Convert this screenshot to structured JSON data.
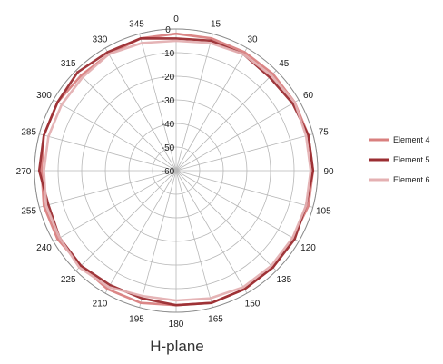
{
  "chart_data": {
    "type": "line",
    "subtype": "polar",
    "title": "",
    "caption": "H-plane",
    "angle_unit": "degrees",
    "angle_step": 15,
    "angle_labels": [
      "0",
      "15",
      "30",
      "45",
      "60",
      "75",
      "90",
      "105",
      "120",
      "135",
      "150",
      "165",
      "180",
      "195",
      "210",
      "225",
      "240",
      "255",
      "270",
      "285",
      "300",
      "315",
      "330",
      "345"
    ],
    "radial_axis": {
      "min": -60,
      "max": 0,
      "step": 10,
      "tick_labels": [
        "0",
        "-10",
        "-20",
        "-30",
        "-40",
        "-50",
        "-60"
      ]
    },
    "grid": true,
    "legend_position": "right",
    "theta": [
      0,
      15,
      30,
      45,
      60,
      75,
      90,
      105,
      120,
      135,
      150,
      165,
      180,
      195,
      210,
      225,
      240,
      255,
      270,
      285,
      300,
      315,
      330,
      345
    ],
    "series": [
      {
        "name": "Element 4",
        "color": "#d9807f",
        "values": [
          -2,
          -2,
          -2,
          -2,
          -2,
          -2,
          -2,
          -2,
          -3,
          -2,
          -2,
          -2,
          -3,
          -2,
          -2,
          -3,
          -2,
          -2,
          -3,
          -2,
          -2,
          -3,
          -3,
          -2
        ]
      },
      {
        "name": "Element 5",
        "color": "#9b2d32",
        "values": [
          -4,
          -3,
          -3,
          -4,
          -3,
          -2,
          -2,
          -3,
          -2,
          -2,
          -2,
          -2,
          -3,
          -4,
          -4,
          -3,
          -3,
          -4,
          -2,
          -2,
          -2,
          -1,
          -2,
          -2
        ]
      },
      {
        "name": "Element 6",
        "color": "#e4b0b2",
        "values": [
          -5,
          -4,
          -3,
          -3,
          -2,
          -3,
          -3,
          -3,
          -3,
          -3,
          -3,
          -4,
          -5,
          -5,
          -3,
          -2,
          -3,
          -3,
          -4,
          -4,
          -4,
          -4,
          -3,
          -4
        ]
      }
    ]
  }
}
